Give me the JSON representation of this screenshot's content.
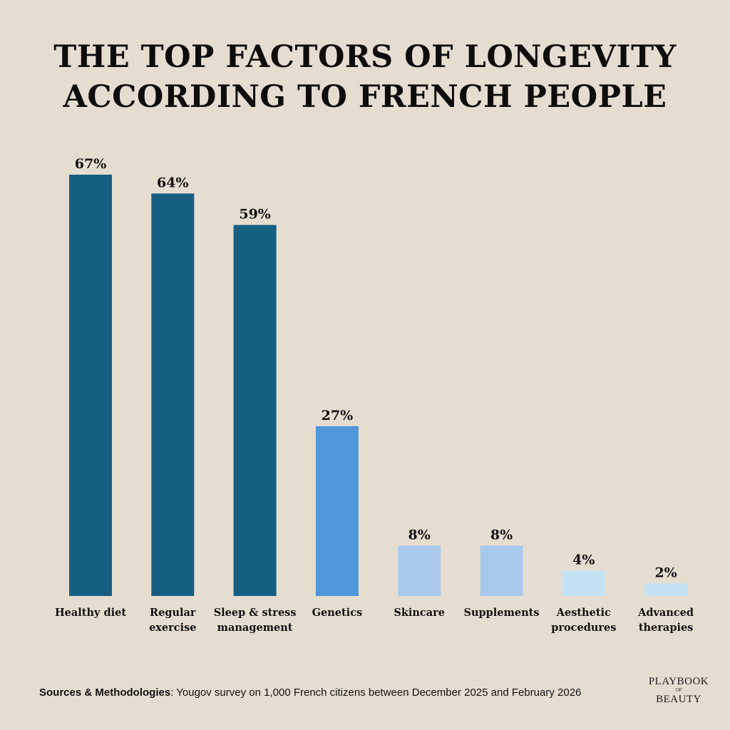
{
  "title": {
    "line1": "THE TOP FACTORS OF LONGEVITY",
    "line2": "ACCORDING TO FRENCH PEOPLE"
  },
  "chart_data": {
    "type": "bar",
    "categories": [
      [
        "Healthy diet"
      ],
      [
        "Regular",
        "exercise"
      ],
      [
        "Sleep & stress",
        "management"
      ],
      [
        "Genetics"
      ],
      [
        "Skincare"
      ],
      [
        "Supplements"
      ],
      [
        "Aesthetic",
        "procedures"
      ],
      [
        "Advanced",
        "therapies"
      ]
    ],
    "values": [
      67,
      64,
      59,
      27,
      8,
      8,
      4,
      2
    ],
    "value_labels": [
      "67%",
      "64%",
      "59%",
      "27%",
      "8%",
      "8%",
      "4%",
      "2%"
    ],
    "colors": [
      "#175e83",
      "#175e83",
      "#175e83",
      "#5196d9",
      "#a8c9ec",
      "#a8c9ec",
      "#c3e3f4",
      "#c3e3f4"
    ],
    "ylim": [
      0,
      67
    ],
    "grid": false
  },
  "footer": {
    "source_label": "Sources & Methodologies",
    "source_text": ": Yougov survey on 1,000 French citizens between December 2025 and February 2026"
  },
  "logo": {
    "line1": "PLAYBOOK",
    "line2": "OF",
    "line3": "BEAUTY"
  }
}
